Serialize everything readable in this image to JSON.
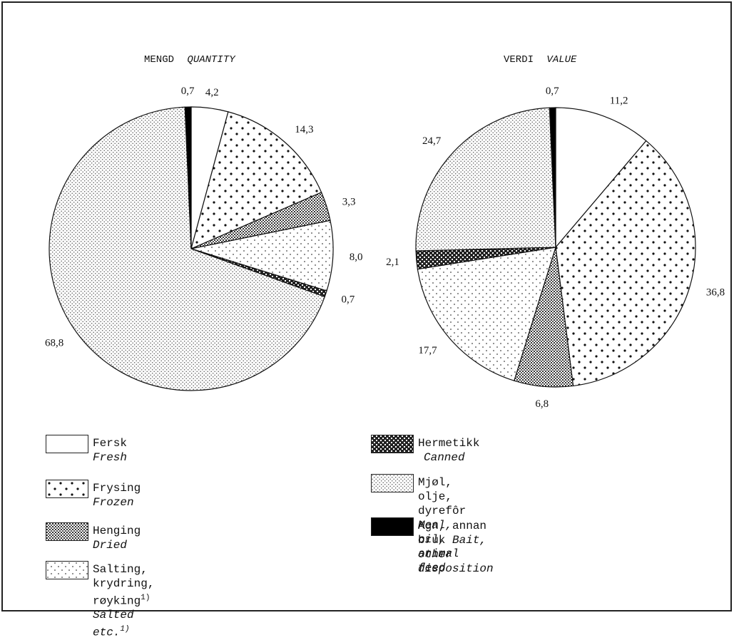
{
  "chart_data": [
    {
      "type": "pie",
      "title": "MENGD",
      "title_en": "QUANTITY",
      "slices": [
        {
          "key": "fresh",
          "value": 4.2,
          "label": "4,2"
        },
        {
          "key": "frozen",
          "value": 14.3,
          "label": "14,3"
        },
        {
          "key": "dried",
          "value": 3.3,
          "label": "3,3"
        },
        {
          "key": "salted",
          "value": 8.0,
          "label": "8,0"
        },
        {
          "key": "canned",
          "value": 0.7,
          "label": "0,7"
        },
        {
          "key": "meal",
          "value": 68.8,
          "label": "68,8"
        },
        {
          "key": "bait",
          "value": 0.7,
          "label": "0,7"
        }
      ]
    },
    {
      "type": "pie",
      "title": "VERDI",
      "title_en": "VALUE",
      "slices": [
        {
          "key": "fresh",
          "value": 11.2,
          "label": "11,2"
        },
        {
          "key": "frozen",
          "value": 36.8,
          "label": "36,8"
        },
        {
          "key": "dried",
          "value": 6.8,
          "label": "6,8"
        },
        {
          "key": "salted",
          "value": 17.7,
          "label": "17,7"
        },
        {
          "key": "canned",
          "value": 2.1,
          "label": "2,1"
        },
        {
          "key": "meal",
          "value": 24.7,
          "label": "24,7"
        },
        {
          "key": "bait",
          "value": 0.7,
          "label": "0,7"
        }
      ]
    }
  ],
  "legend": {
    "fresh": {
      "no": "Fersk",
      "en": "Fresh"
    },
    "frozen": {
      "no": "Frysing",
      "en": "Frozen"
    },
    "dried": {
      "no": "Henging",
      "en": "Dried"
    },
    "salted": {
      "no": "Salting, krydring, røyking",
      "no_note": "1)",
      "en": "Salted etc.",
      "en_note": "1)"
    },
    "canned": {
      "no": "Hermetikk",
      "en": "Canned"
    },
    "meal": {
      "no": "Mjøl, olje, dyrefôr",
      "en": "Meal, oil,",
      "en2": "animal feed"
    },
    "bait": {
      "no": "Agn, annan bruk",
      "en": "Bait, other",
      "en2": "disposition"
    }
  }
}
